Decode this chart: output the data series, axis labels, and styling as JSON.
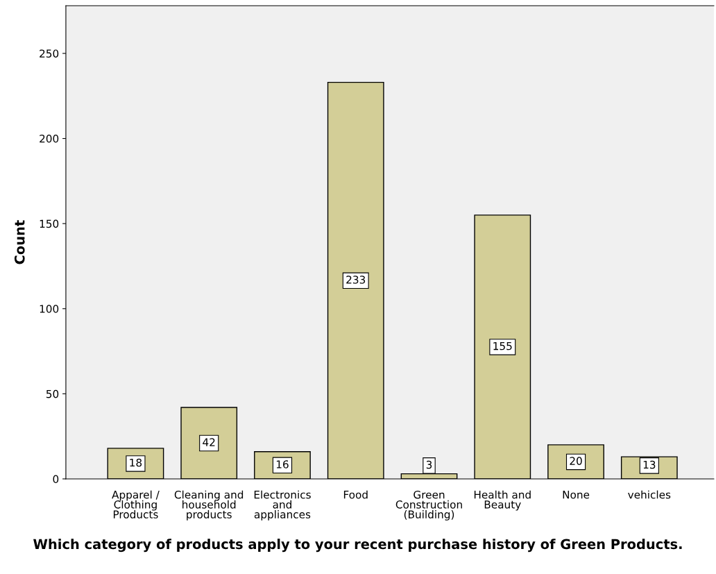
{
  "chart_data": {
    "type": "bar",
    "xlabel": "Which category of products apply to your recent purchase history of Green Products.",
    "ylabel": "Count",
    "categories": [
      "Apparel /\nClothing\nProducts",
      "Cleaning and\nhousehold\nproducts",
      "Electronics\nand\nappliances",
      "Food",
      "Green\nConstruction\n(Building)",
      "Health and\nBeauty",
      "None",
      "vehicles"
    ],
    "values": [
      18,
      42,
      16,
      233,
      3,
      155,
      20,
      13
    ],
    "color": "#d3ce97",
    "ylim": [
      0,
      278
    ],
    "yticks": [
      0,
      50,
      100,
      150,
      200,
      250
    ],
    "data_labels": true,
    "grid": false
  }
}
